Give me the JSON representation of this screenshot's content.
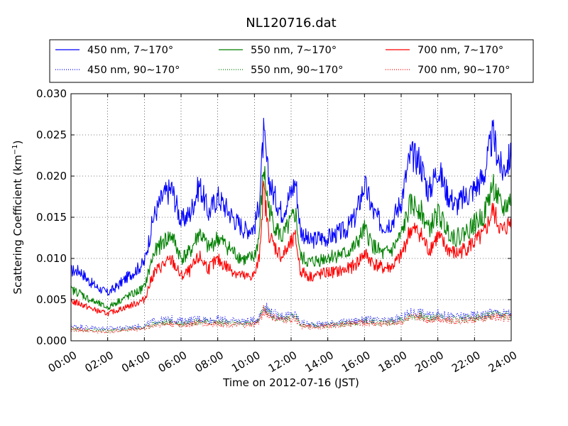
{
  "chart_data": {
    "type": "line",
    "title": "NL120716.dat",
    "xlabel": "Time on 2012-07-16 (JST)",
    "ylabel": "Scattering Coefficient (km",
    "ylabel_sup": "−1",
    "ylabel_close": ")",
    "xlim": [
      "00:00",
      "24:00"
    ],
    "ylim": [
      0.0,
      0.03
    ],
    "x_ticks": [
      "00:00",
      "02:00",
      "04:00",
      "06:00",
      "08:00",
      "10:00",
      "12:00",
      "14:00",
      "16:00",
      "18:00",
      "20:00",
      "22:00",
      "24:00"
    ],
    "y_ticks": [
      "0.000",
      "0.005",
      "0.010",
      "0.015",
      "0.020",
      "0.025",
      "0.030"
    ],
    "grid": true,
    "legend_position": "top, above plot, 3 columns",
    "x_hours": [
      0,
      0.5,
      1,
      1.5,
      2,
      2.5,
      3,
      3.5,
      4,
      4.5,
      5,
      5.5,
      6,
      6.5,
      7,
      7.5,
      8,
      8.5,
      9,
      9.5,
      10,
      10.25,
      10.5,
      10.75,
      11,
      11.5,
      12,
      12.25,
      12.5,
      13,
      13.5,
      14,
      14.5,
      15,
      15.5,
      16,
      16.5,
      17,
      17.5,
      18,
      18.5,
      19,
      19.5,
      20,
      20.5,
      21,
      21.5,
      22,
      22.5,
      23,
      23.5,
      24
    ],
    "series": [
      {
        "name": "450 nm, 7∼170°",
        "color": "#0000ff",
        "style": "solid",
        "values": [
          0.0085,
          0.0085,
          0.0072,
          0.0064,
          0.0058,
          0.0066,
          0.0076,
          0.0085,
          0.0095,
          0.015,
          0.0175,
          0.0185,
          0.0145,
          0.0155,
          0.019,
          0.0155,
          0.0175,
          0.016,
          0.0145,
          0.0135,
          0.0138,
          0.0165,
          0.025,
          0.02,
          0.018,
          0.0155,
          0.018,
          0.0195,
          0.0135,
          0.012,
          0.0125,
          0.0125,
          0.013,
          0.0135,
          0.015,
          0.019,
          0.0155,
          0.014,
          0.0145,
          0.017,
          0.0225,
          0.022,
          0.018,
          0.021,
          0.018,
          0.0165,
          0.0175,
          0.0185,
          0.02,
          0.025,
          0.0205,
          0.0225
        ]
      },
      {
        "name": "450 nm, 90∼170°",
        "color": "#0000ff",
        "style": "dotted",
        "values": [
          0.0018,
          0.0017,
          0.0016,
          0.0015,
          0.0015,
          0.0015,
          0.0016,
          0.0017,
          0.0018,
          0.0024,
          0.0025,
          0.0026,
          0.0024,
          0.0025,
          0.0027,
          0.0025,
          0.0026,
          0.0025,
          0.0024,
          0.0024,
          0.0025,
          0.0028,
          0.0043,
          0.0038,
          0.0033,
          0.003,
          0.0031,
          0.0032,
          0.0022,
          0.002,
          0.002,
          0.0021,
          0.0022,
          0.0023,
          0.0024,
          0.0026,
          0.0025,
          0.0024,
          0.0025,
          0.0028,
          0.0034,
          0.0035,
          0.003,
          0.0033,
          0.003,
          0.0029,
          0.003,
          0.0031,
          0.0032,
          0.0035,
          0.0033,
          0.0034
        ]
      },
      {
        "name": "550 nm, 7∼170°",
        "color": "#008000",
        "style": "solid",
        "values": [
          0.0062,
          0.0058,
          0.005,
          0.0045,
          0.004,
          0.0047,
          0.0053,
          0.0058,
          0.0065,
          0.0105,
          0.012,
          0.0128,
          0.01,
          0.0108,
          0.0132,
          0.0112,
          0.0125,
          0.0115,
          0.0105,
          0.0098,
          0.0102,
          0.0125,
          0.021,
          0.0165,
          0.0145,
          0.0125,
          0.0145,
          0.0155,
          0.0102,
          0.0095,
          0.0098,
          0.0102,
          0.0104,
          0.0106,
          0.0115,
          0.0135,
          0.0115,
          0.0105,
          0.011,
          0.0128,
          0.0165,
          0.0162,
          0.0135,
          0.0155,
          0.0135,
          0.0125,
          0.0132,
          0.0142,
          0.0152,
          0.019,
          0.0158,
          0.0172
        ]
      },
      {
        "name": "550 nm, 90∼170°",
        "color": "#008000",
        "style": "dotted",
        "values": [
          0.0015,
          0.0014,
          0.0013,
          0.0013,
          0.0012,
          0.0013,
          0.0014,
          0.0015,
          0.0016,
          0.0021,
          0.0022,
          0.0023,
          0.0021,
          0.0022,
          0.0024,
          0.0022,
          0.0023,
          0.0022,
          0.0021,
          0.0021,
          0.0022,
          0.0025,
          0.004,
          0.0035,
          0.003,
          0.0027,
          0.0028,
          0.0029,
          0.002,
          0.0018,
          0.0018,
          0.0019,
          0.002,
          0.0021,
          0.0022,
          0.0024,
          0.0023,
          0.0022,
          0.0023,
          0.0025,
          0.003,
          0.0031,
          0.0027,
          0.003,
          0.0027,
          0.0026,
          0.0027,
          0.0028,
          0.0029,
          0.0031,
          0.003,
          0.0031
        ]
      },
      {
        "name": "700 nm, 7∼170°",
        "color": "#ff0000",
        "style": "solid",
        "values": [
          0.0048,
          0.0045,
          0.004,
          0.0036,
          0.0033,
          0.0037,
          0.0041,
          0.0045,
          0.005,
          0.0082,
          0.0092,
          0.0098,
          0.0078,
          0.0085,
          0.0102,
          0.0088,
          0.0098,
          0.009,
          0.0083,
          0.0077,
          0.008,
          0.0098,
          0.0185,
          0.0135,
          0.0118,
          0.0102,
          0.0118,
          0.0125,
          0.0085,
          0.0078,
          0.008,
          0.0083,
          0.0084,
          0.0086,
          0.0092,
          0.0106,
          0.0094,
          0.0088,
          0.009,
          0.0103,
          0.0135,
          0.0132,
          0.011,
          0.0127,
          0.0112,
          0.0105,
          0.0112,
          0.012,
          0.0128,
          0.0158,
          0.0132,
          0.0145
        ]
      },
      {
        "name": "700 nm, 90∼170°",
        "color": "#ff0000",
        "style": "dotted",
        "values": [
          0.0014,
          0.0013,
          0.0012,
          0.0011,
          0.0011,
          0.0012,
          0.0013,
          0.0014,
          0.0015,
          0.0019,
          0.002,
          0.0021,
          0.0019,
          0.002,
          0.0022,
          0.002,
          0.0021,
          0.002,
          0.0019,
          0.0019,
          0.002,
          0.0023,
          0.0037,
          0.0032,
          0.0028,
          0.0025,
          0.0026,
          0.0027,
          0.0018,
          0.0017,
          0.0017,
          0.0018,
          0.0019,
          0.002,
          0.0021,
          0.0022,
          0.0021,
          0.0021,
          0.0022,
          0.0023,
          0.0028,
          0.0029,
          0.0025,
          0.0028,
          0.0025,
          0.0024,
          0.0025,
          0.0026,
          0.0027,
          0.0029,
          0.0028,
          0.0029
        ]
      }
    ]
  }
}
